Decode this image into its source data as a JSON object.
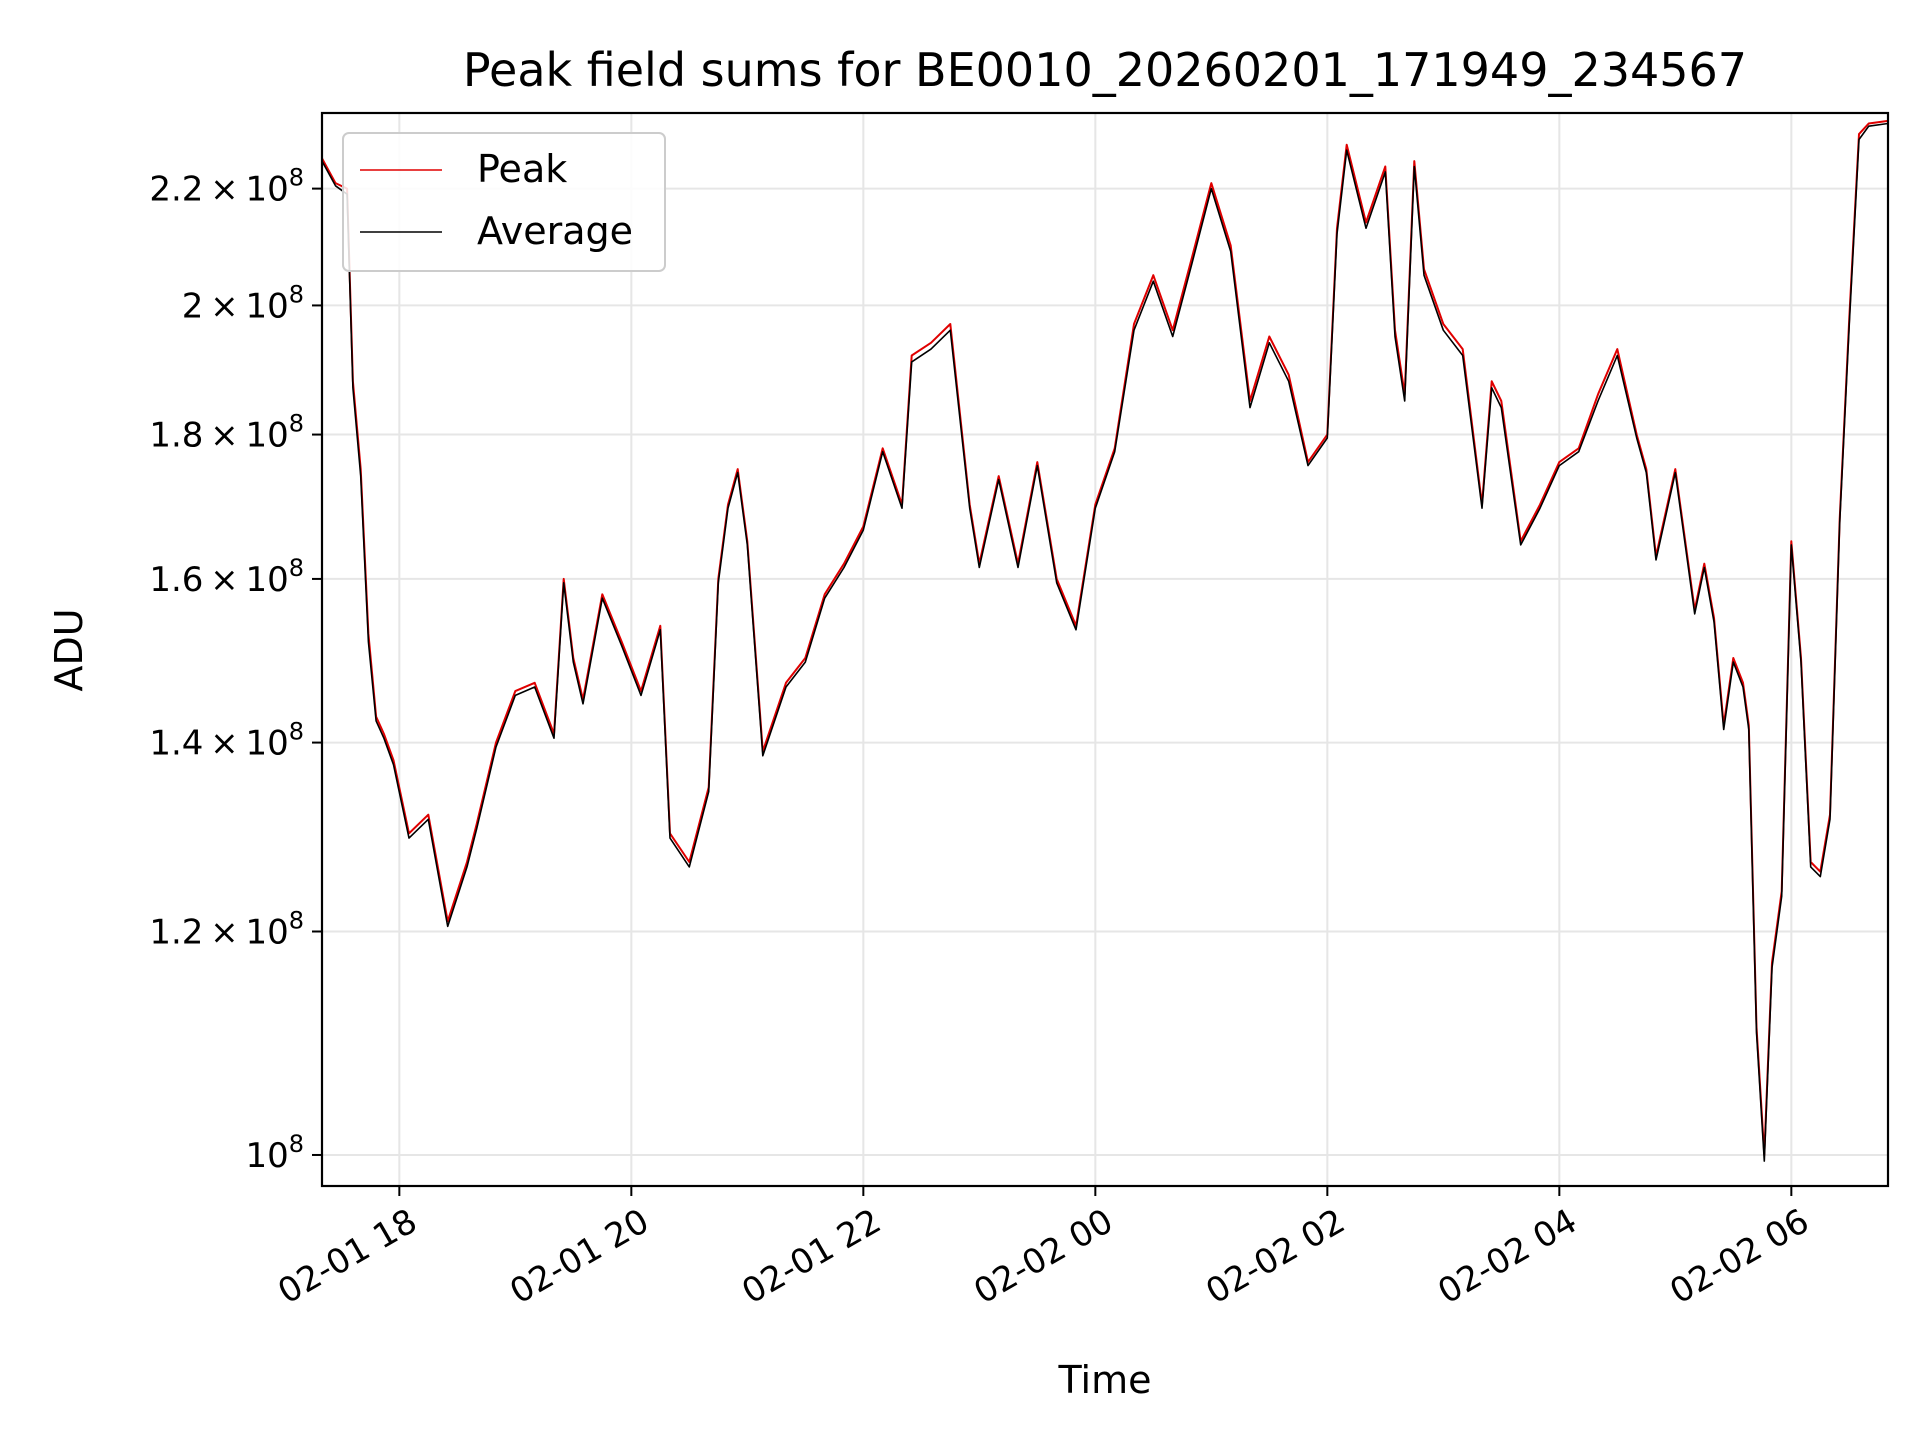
{
  "chart_data": {
    "type": "line",
    "title": "Peak field sums for BE0010_20260201_171949_234567",
    "xlabel": "Time",
    "ylabel": "ADU",
    "yscale": "log",
    "ylim": [
      97500000,
      234000000
    ],
    "xlim": [
      "2026-02-01 17:20",
      "2026-02-02 06:50"
    ],
    "grid": true,
    "legend_position": "upper-left",
    "x_ticks": [
      {
        "value": "2026-02-01 18:00",
        "label": "02-01 18"
      },
      {
        "value": "2026-02-01 20:00",
        "label": "02-01 20"
      },
      {
        "value": "2026-02-01 22:00",
        "label": "02-01 22"
      },
      {
        "value": "2026-02-02 00:00",
        "label": "02-02 00"
      },
      {
        "value": "2026-02-02 02:00",
        "label": "02-02 02"
      },
      {
        "value": "2026-02-02 04:00",
        "label": "02-02 04"
      },
      {
        "value": "2026-02-02 06:00",
        "label": "02-02 06"
      }
    ],
    "y_ticks": [
      {
        "value": 100000000,
        "mantissa": "",
        "exponent": "8"
      },
      {
        "value": 120000000,
        "mantissa": "1.2",
        "exponent": "8"
      },
      {
        "value": 140000000,
        "mantissa": "1.4",
        "exponent": "8"
      },
      {
        "value": 160000000,
        "mantissa": "1.6",
        "exponent": "8"
      },
      {
        "value": 180000000,
        "mantissa": "1.8",
        "exponent": "8"
      },
      {
        "value": 200000000,
        "mantissa": "2",
        "exponent": "8"
      },
      {
        "value": 220000000,
        "mantissa": "2.2",
        "exponent": "8"
      }
    ],
    "x": [
      "2026-02-01 17:20",
      "2026-02-01 17:27",
      "2026-02-01 17:33",
      "2026-02-01 17:36",
      "2026-02-01 17:40",
      "2026-02-01 17:44",
      "2026-02-01 17:48",
      "2026-02-01 17:52",
      "2026-02-01 17:57",
      "2026-02-01 18:05",
      "2026-02-01 18:15",
      "2026-02-01 18:25",
      "2026-02-01 18:35",
      "2026-02-01 18:40",
      "2026-02-01 18:50",
      "2026-02-01 19:00",
      "2026-02-01 19:10",
      "2026-02-01 19:20",
      "2026-02-01 19:25",
      "2026-02-01 19:30",
      "2026-02-01 19:35",
      "2026-02-01 19:45",
      "2026-02-01 19:55",
      "2026-02-01 20:05",
      "2026-02-01 20:15",
      "2026-02-01 20:20",
      "2026-02-01 20:30",
      "2026-02-01 20:40",
      "2026-02-01 20:45",
      "2026-02-01 20:50",
      "2026-02-01 20:55",
      "2026-02-01 21:00",
      "2026-02-01 21:08",
      "2026-02-01 21:20",
      "2026-02-01 21:30",
      "2026-02-01 21:40",
      "2026-02-01 21:50",
      "2026-02-01 22:00",
      "2026-02-01 22:10",
      "2026-02-01 22:20",
      "2026-02-01 22:25",
      "2026-02-01 22:35",
      "2026-02-01 22:45",
      "2026-02-01 22:55",
      "2026-02-01 23:00",
      "2026-02-01 23:10",
      "2026-02-01 23:20",
      "2026-02-01 23:30",
      "2026-02-01 23:40",
      "2026-02-01 23:50",
      "2026-02-02 00:00",
      "2026-02-02 00:10",
      "2026-02-02 00:20",
      "2026-02-02 00:30",
      "2026-02-02 00:40",
      "2026-02-02 00:50",
      "2026-02-02 01:00",
      "2026-02-02 01:10",
      "2026-02-02 01:20",
      "2026-02-02 01:30",
      "2026-02-02 01:40",
      "2026-02-02 01:50",
      "2026-02-02 02:00",
      "2026-02-02 02:05",
      "2026-02-02 02:10",
      "2026-02-02 02:20",
      "2026-02-02 02:30",
      "2026-02-02 02:35",
      "2026-02-02 02:40",
      "2026-02-02 02:45",
      "2026-02-02 02:50",
      "2026-02-02 03:00",
      "2026-02-02 03:10",
      "2026-02-02 03:20",
      "2026-02-02 03:25",
      "2026-02-02 03:30",
      "2026-02-02 03:40",
      "2026-02-02 03:50",
      "2026-02-02 04:00",
      "2026-02-02 04:10",
      "2026-02-02 04:20",
      "2026-02-02 04:30",
      "2026-02-02 04:40",
      "2026-02-02 04:45",
      "2026-02-02 04:50",
      "2026-02-02 05:00",
      "2026-02-02 05:10",
      "2026-02-02 05:15",
      "2026-02-02 05:20",
      "2026-02-02 05:25",
      "2026-02-02 05:30",
      "2026-02-02 05:35",
      "2026-02-02 05:38",
      "2026-02-02 05:42",
      "2026-02-02 05:46",
      "2026-02-02 05:50",
      "2026-02-02 05:55",
      "2026-02-02 06:00",
      "2026-02-02 06:05",
      "2026-02-02 06:10",
      "2026-02-02 06:15",
      "2026-02-02 06:20",
      "2026-02-02 06:25",
      "2026-02-02 06:30",
      "2026-02-02 06:35",
      "2026-02-02 06:40",
      "2026-02-02 06:50"
    ],
    "series": [
      {
        "name": "Peak",
        "color": "#e00000",
        "values": [
          225500000,
          221000000,
          220000000,
          188000000,
          175000000,
          153000000,
          143000000,
          141000000,
          138000000,
          130000000,
          132000000,
          121000000,
          127000000,
          131000000,
          140000000,
          146000000,
          147000000,
          141000000,
          160000000,
          150000000,
          145000000,
          158000000,
          152000000,
          146000000,
          154000000,
          130000000,
          127000000,
          135000000,
          160000000,
          170000000,
          175000000,
          165000000,
          139000000,
          147000000,
          150000000,
          158000000,
          162000000,
          167000000,
          178000000,
          170000000,
          192000000,
          194000000,
          197000000,
          170000000,
          162000000,
          174000000,
          162000000,
          176000000,
          160000000,
          154000000,
          170000000,
          178000000,
          197000000,
          205000000,
          196000000,
          208000000,
          221000000,
          210000000,
          185000000,
          195000000,
          189000000,
          176000000,
          180000000,
          213000000,
          228000000,
          214000000,
          224000000,
          196000000,
          186000000,
          225000000,
          206000000,
          197000000,
          193000000,
          170000000,
          188000000,
          185000000,
          165000000,
          170000000,
          176000000,
          178000000,
          186000000,
          193000000,
          180000000,
          175000000,
          163000000,
          175000000,
          156000000,
          162000000,
          155000000,
          142000000,
          150000000,
          147000000,
          142000000,
          111000000,
          100000000,
          117000000,
          124000000,
          165000000,
          150000000,
          127000000,
          126000000,
          132000000,
          168000000,
          198000000,
          230000000,
          232000000,
          232500000
        ]
      },
      {
        "name": "Average",
        "color": "#000000",
        "values": [
          225000000,
          220500000,
          219000000,
          187000000,
          174000000,
          152000000,
          142500000,
          140500000,
          137500000,
          129500000,
          131500000,
          120500000,
          126500000,
          130500000,
          139500000,
          145500000,
          146500000,
          140500000,
          159500000,
          149500000,
          144500000,
          157500000,
          151500000,
          145500000,
          153500000,
          129500000,
          126500000,
          134500000,
          159500000,
          169500000,
          174500000,
          164500000,
          138500000,
          146500000,
          149500000,
          157500000,
          161500000,
          166500000,
          177500000,
          169500000,
          191000000,
          193000000,
          196000000,
          169500000,
          161500000,
          173500000,
          161500000,
          175500000,
          159500000,
          153500000,
          169500000,
          177500000,
          196000000,
          204000000,
          195000000,
          207000000,
          220000000,
          209000000,
          184000000,
          194000000,
          188000000,
          175500000,
          179500000,
          212000000,
          227000000,
          213000000,
          223000000,
          195000000,
          185000000,
          224000000,
          205000000,
          196000000,
          192000000,
          169500000,
          187000000,
          184000000,
          164500000,
          169500000,
          175500000,
          177500000,
          185000000,
          192000000,
          179500000,
          174500000,
          162500000,
          174500000,
          155500000,
          161500000,
          154500000,
          141500000,
          149500000,
          146500000,
          141500000,
          110500000,
          99500000,
          116500000,
          123500000,
          164500000,
          149500000,
          126500000,
          125500000,
          131500000,
          167500000,
          197000000,
          229000000,
          231500000,
          232000000
        ]
      }
    ]
  }
}
